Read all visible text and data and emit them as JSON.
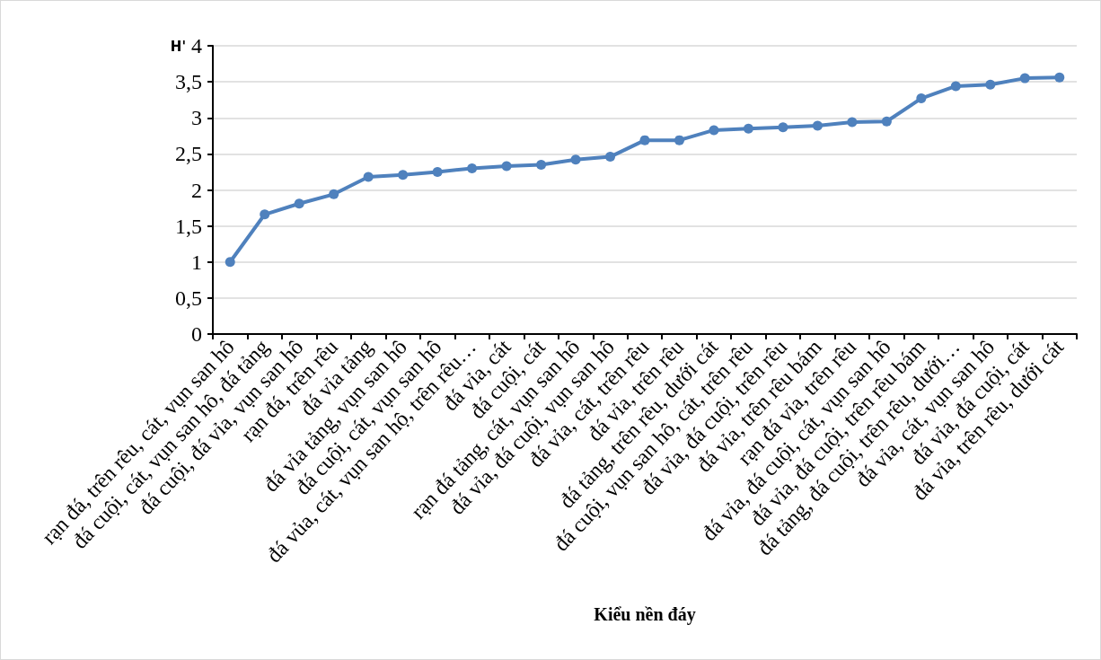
{
  "chart_data": {
    "type": "line",
    "xlabel": "Kiểu nền đáy",
    "ylabel": "H'",
    "categories": [
      "rạn đá, trên rêu, cát, vụn san hô",
      "đá cuội, cát, vụn san hô, đá tảng",
      "đá cuội, đá vỉa, vụn san hô",
      "rạn đá, trên rêu",
      "đá vỉa tảng",
      "đá vỉa tảng, vụn san hô",
      "đá cuội, cát, vụn san hô",
      "đá vủa, cát, vụn san hộ, trên rêu…",
      "đá vỉa, cát",
      "đá cuội, cát",
      "rạn đá tảng, cát, vụn san hô",
      "đá vỉa, đá cuội, vụn san hô",
      "đá vỉa, cát, trên rêu",
      "đá vỉa, trên rêu",
      "đá tảng, trên rêu, dưới cát",
      "đá cuội, vụn san hô, cát, trên rêu",
      "đá vỉa, đá cuội, trên rêu",
      "đá vỉa, trên rêu bám",
      "rạn đá vỉa, trên rêu",
      "đá vỉa, đá cuội, cát, vụn san hô",
      "đá vỉa, đá cuội, trên rêu bám",
      "đá tảng, đá cuội, trên rêu, dưới…",
      "đá vỉa, cát, vụn san hô",
      "đá vỉa, đá cuội, cát",
      "đá vỉa, trên rêu, dưới cát"
    ],
    "series": [
      {
        "color": "#4f81bd",
        "values": [
          1.0,
          1.66,
          1.81,
          1.94,
          2.18,
          2.21,
          2.25,
          2.3,
          2.33,
          2.35,
          2.42,
          2.46,
          2.69,
          2.69,
          2.83,
          2.85,
          2.87,
          2.89,
          2.94,
          2.95,
          3.27,
          3.44,
          3.46,
          3.55,
          3.56
        ]
      }
    ],
    "ylim": [
      0,
      4
    ],
    "yticks": [
      0,
      {
        "value": 0.5,
        "label": "0,5"
      },
      1,
      {
        "value": 1.5,
        "label": "1,5"
      },
      2,
      {
        "value": 2.5,
        "label": "2,5"
      },
      3,
      {
        "value": 3.5,
        "label": "3,5"
      },
      4
    ],
    "grid": "y",
    "marker": "circle",
    "line_style": "solid"
  }
}
